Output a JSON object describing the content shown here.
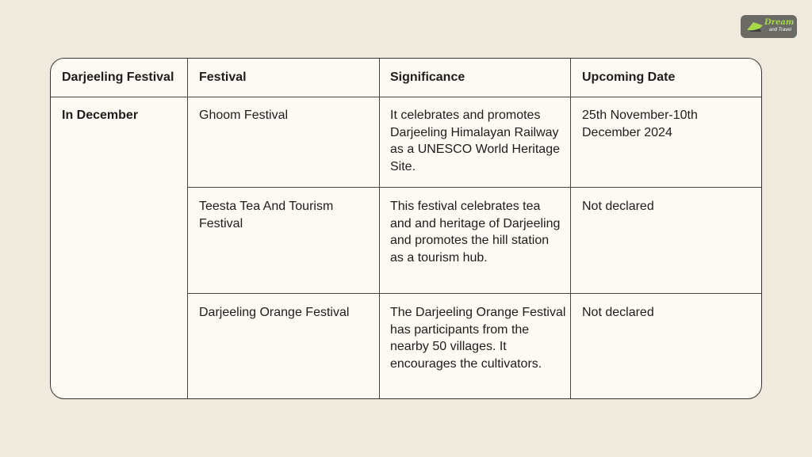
{
  "logo": {
    "line1": "Dream",
    "line2": "and Travel",
    "accent": "#a6d84a"
  },
  "table": {
    "headers": [
      "Darjeeling Festival",
      "Festival",
      "Significance",
      "Upcoming Date"
    ],
    "group_label": "In December",
    "rows": [
      {
        "festival": "Ghoom Festival",
        "significance": "It celebrates and promotes Darjeeling Himalayan Railway as a UNESCO World Heritage Site.",
        "date": "25th November-10th December 2024"
      },
      {
        "festival": "Teesta Tea And Tourism Festival",
        "significance": "This festival celebrates tea and and heritage of Darjeeling and promotes the hill station as a tourism hub.",
        "date": "Not declared"
      },
      {
        "festival": "Darjeeling Orange Festival",
        "significance": "The Darjeeling Orange Festival has participants from the nearby 50 villages. It encourages the cultivators.",
        "date": "Not declared"
      }
    ]
  }
}
